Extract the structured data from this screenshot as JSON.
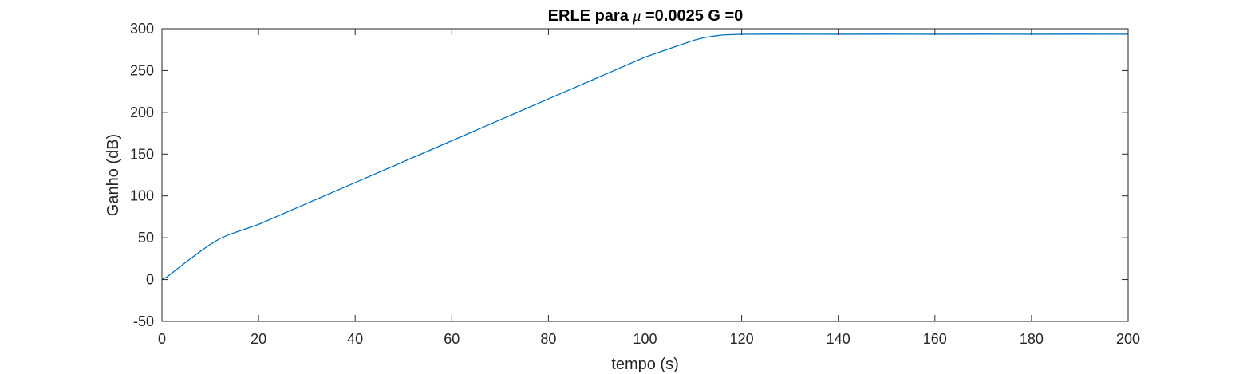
{
  "chart_data": {
    "type": "line",
    "title": {
      "prefix": "ERLE para ",
      "symbol": "μ",
      "suffix": " =0.0025 G =0"
    },
    "xlabel": "tempo (s)",
    "ylabel": "Ganho (dB)",
    "xlim": [
      0,
      200
    ],
    "ylim": [
      -50,
      300
    ],
    "xticks": [
      0,
      20,
      40,
      60,
      80,
      100,
      120,
      140,
      160,
      180,
      200
    ],
    "yticks": [
      -50,
      0,
      50,
      100,
      150,
      200,
      250,
      300
    ],
    "grid": false,
    "line_color": "#0072BD",
    "series": [
      {
        "x": [
          0,
          1,
          3,
          5,
          8,
          10,
          12,
          14,
          16,
          20,
          30,
          40,
          50,
          60,
          70,
          80,
          90,
          100,
          105,
          108,
          110,
          112,
          114,
          116,
          118,
          120,
          125,
          130,
          140,
          150,
          160,
          170,
          180,
          190,
          200
        ],
        "y": [
          0,
          3,
          12,
          21,
          34,
          42,
          49,
          54,
          58,
          66,
          91,
          116,
          141,
          166,
          191,
          216,
          241,
          266,
          276,
          282,
          286,
          289,
          291,
          292.5,
          293,
          293.3,
          293.5,
          293.5,
          293.4,
          293.5,
          293.4,
          293.5,
          293.4,
          293.5,
          293.4
        ]
      }
    ]
  }
}
